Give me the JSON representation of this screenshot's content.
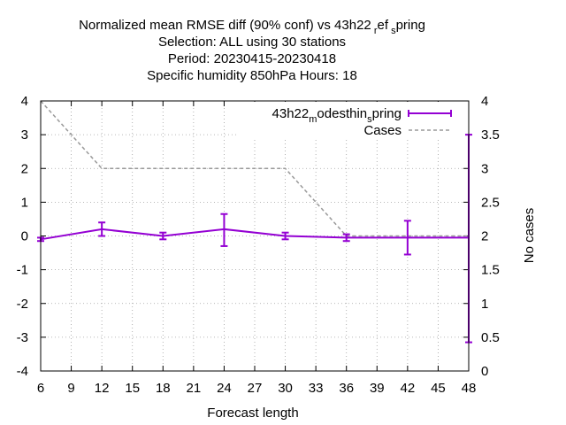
{
  "chart_data": {
    "type": "line",
    "title": [
      "Normalized mean RMSE diff (90% conf) vs 43h22_ref_spring",
      "Selection: ALL using    30 stations",
      "Period: 20230415-20230418",
      "Specific humidity 850hPa   Hours:  18"
    ],
    "xlabel": "Forecast length",
    "ylabel": "",
    "y2label": "No cases",
    "xlim": [
      6,
      48
    ],
    "ylim": [
      -4,
      4
    ],
    "y2lim": [
      0,
      4
    ],
    "xticks": [
      6,
      9,
      12,
      15,
      18,
      21,
      24,
      27,
      30,
      33,
      36,
      39,
      42,
      45,
      48
    ],
    "yticks": [
      -4,
      -3,
      -2,
      -1,
      0,
      1,
      2,
      3,
      4
    ],
    "y2ticks": [
      "0",
      "0.5",
      "1",
      "1.5",
      "2",
      "2.5",
      "3",
      "3.5",
      "4"
    ],
    "grid": true,
    "legend_position": "top-right",
    "series": [
      {
        "name_main": "43h22",
        "name_sub1": "m",
        "name_mid": "odesthin",
        "name_sub2": "s",
        "name_end": "pring",
        "color": "#9400d3",
        "axis": "left",
        "x": [
          6,
          12,
          18,
          24,
          30,
          36,
          42,
          48
        ],
        "y": [
          -0.1,
          0.2,
          0.0,
          0.2,
          0.0,
          -0.05,
          -0.05,
          -0.05
        ],
        "err_low": [
          -0.15,
          0.0,
          -0.1,
          -0.3,
          -0.1,
          -0.15,
          -0.55,
          -3.15
        ],
        "err_high": [
          -0.05,
          0.4,
          0.1,
          0.65,
          0.1,
          0.05,
          0.45,
          3.0
        ]
      },
      {
        "name": "Cases",
        "color": "#999999",
        "axis": "right",
        "x": [
          6,
          12,
          18,
          24,
          30,
          36,
          42,
          48
        ],
        "y": [
          4,
          3,
          3,
          3,
          3,
          2,
          2,
          2
        ]
      }
    ]
  }
}
